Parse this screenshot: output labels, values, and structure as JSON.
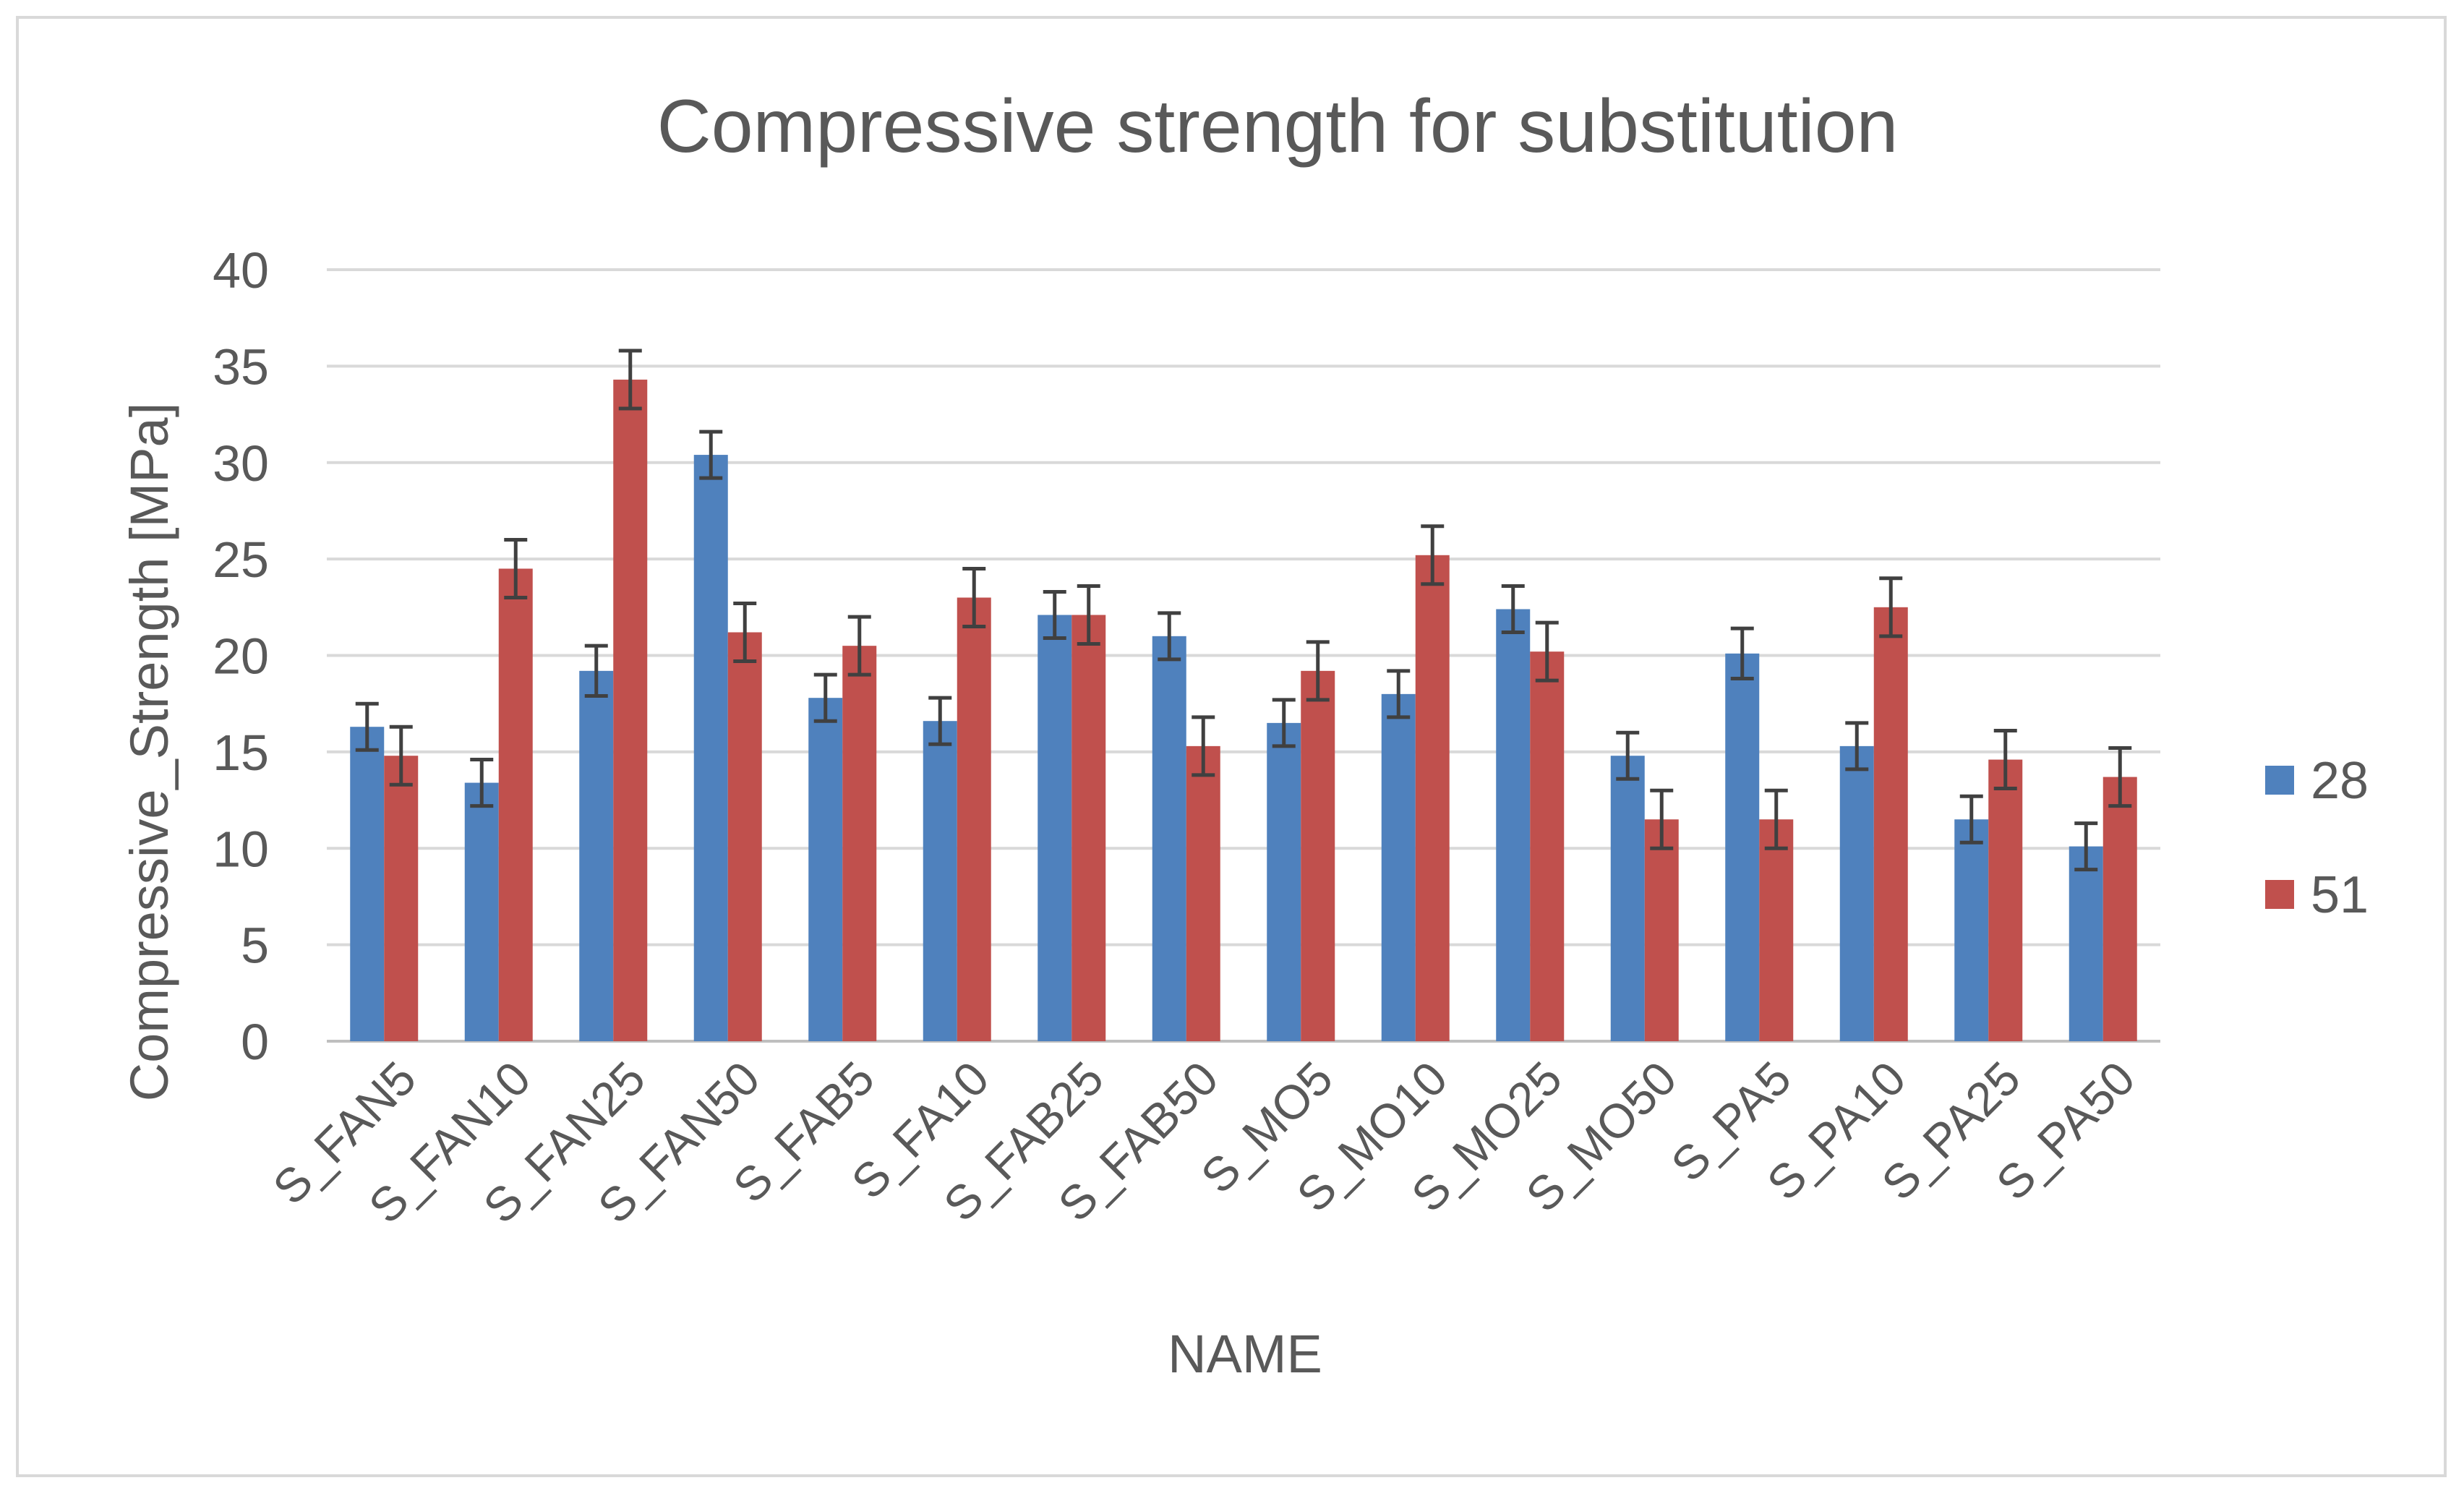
{
  "chart_data": {
    "type": "bar",
    "title": "Compressive strength for substitution",
    "xlabel": "NAME",
    "ylabel": "Compressive_Strength [MPa]",
    "ylim": [
      0,
      40
    ],
    "yticks": [
      0,
      5,
      10,
      15,
      20,
      25,
      30,
      35,
      40
    ],
    "grid": true,
    "legend_position": "right",
    "error_bars": true,
    "categories": [
      "S_FAN5",
      "S_FAN10",
      "S_FAN25",
      "S_FAN50",
      "S_FAB5",
      "S_FA10",
      "S_FAB25",
      "S_FAB50",
      "S_MO5",
      "S_MO10",
      "S_MO25",
      "S_MO50",
      "S_PA5",
      "S_PA10",
      "S_PA25",
      "S_PA50"
    ],
    "series": [
      {
        "name": "28",
        "color": "#4f81bd",
        "values": [
          16.3,
          13.4,
          19.2,
          30.4,
          17.8,
          16.6,
          22.1,
          21.0,
          16.5,
          18.0,
          22.4,
          14.8,
          20.1,
          15.3,
          11.5,
          10.1
        ],
        "errors": [
          1.2,
          1.2,
          1.3,
          1.2,
          1.2,
          1.2,
          1.2,
          1.2,
          1.2,
          1.2,
          1.2,
          1.2,
          1.3,
          1.2,
          1.2,
          1.2
        ]
      },
      {
        "name": "51",
        "color": "#c0504d",
        "values": [
          14.8,
          24.5,
          34.3,
          21.2,
          20.5,
          23.0,
          22.1,
          15.3,
          19.2,
          25.2,
          20.2,
          11.5,
          11.5,
          22.5,
          14.6,
          13.7
        ],
        "errors": [
          1.5,
          1.5,
          1.5,
          1.5,
          1.5,
          1.5,
          1.5,
          1.5,
          1.5,
          1.5,
          1.5,
          1.5,
          1.5,
          1.5,
          1.5,
          1.5
        ]
      }
    ]
  },
  "colors": {
    "gridline": "#d9d9d9",
    "axis": "#bfbfbf",
    "text": "#595959",
    "errorbar": "#404040",
    "frame": "#d9d9d9"
  }
}
